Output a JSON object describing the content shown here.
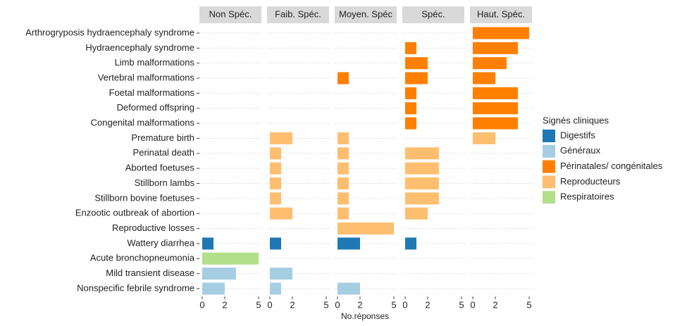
{
  "chart_data": {
    "type": "bar",
    "orientation": "horizontal",
    "x_label": "No.réponses",
    "legend_title": "Signés cliniques",
    "series": [
      {
        "name": "Digestifs",
        "color": "#1f78b4"
      },
      {
        "name": "Généraux",
        "color": "#a6cee3"
      },
      {
        "name": "Périnatales/ congénitales",
        "color": "#ff7f00"
      },
      {
        "name": "Reproducteurs",
        "color": "#fdbf6f"
      },
      {
        "name": "Respiratoires",
        "color": "#b2df8a"
      }
    ],
    "categories": [
      "Arthrogryposis hydraencephaly syndrome",
      "Hydraencephaly syndrome",
      "Limb malformations",
      "Vertebral malformations",
      "Foetal malformations",
      "Deformed offspring",
      "Congenital malformations",
      "Premature birth",
      "Perinatal death",
      "Aborted foetuses",
      "Stillborn lambs",
      "Stillborn bovine foetuses",
      "Enzootic outbreak of abortion",
      "Reproductive losses",
      "Wattery diarrhea",
      "Acute bronchopneumonia",
      "Mild transient disease",
      "Nonspecific febrile syndrome"
    ],
    "category_signs": [
      "Périnatales/ congénitales",
      "Périnatales/ congénitales",
      "Périnatales/ congénitales",
      "Périnatales/ congénitales",
      "Périnatales/ congénitales",
      "Périnatales/ congénitales",
      "Périnatales/ congénitales",
      "Reproducteurs",
      "Reproducteurs",
      "Reproducteurs",
      "Reproducteurs",
      "Reproducteurs",
      "Reproducteurs",
      "Reproducteurs",
      "Digestifs",
      "Respiratoires",
      "Généraux",
      "Généraux"
    ],
    "facets": [
      {
        "name": "Non Spéc.",
        "values": [
          null,
          null,
          null,
          null,
          null,
          null,
          null,
          null,
          null,
          null,
          null,
          null,
          null,
          null,
          1,
          5,
          3,
          2
        ]
      },
      {
        "name": "Faib. Spéc.",
        "values": [
          null,
          null,
          null,
          null,
          null,
          null,
          null,
          2,
          1,
          1,
          1,
          1,
          2,
          null,
          1,
          null,
          2,
          1
        ]
      },
      {
        "name": "Moyen. Spéc",
        "values": [
          null,
          null,
          null,
          1,
          null,
          null,
          null,
          1,
          1,
          1,
          1,
          1,
          1,
          5,
          2,
          null,
          null,
          2
        ]
      },
      {
        "name": "Spéc.",
        "values": [
          null,
          1,
          2,
          2,
          1,
          1,
          1,
          null,
          3,
          3,
          3,
          3,
          2,
          null,
          1,
          null,
          null,
          null
        ]
      },
      {
        "name": "Haut. Spéc.",
        "values": [
          5,
          4,
          3,
          2,
          4,
          4,
          4,
          2,
          null,
          null,
          null,
          null,
          null,
          null,
          null,
          null,
          null,
          null
        ]
      }
    ],
    "xlim": [
      0,
      5
    ],
    "xticks": [
      0,
      2,
      5
    ],
    "grid": true,
    "legend_position": "right"
  }
}
